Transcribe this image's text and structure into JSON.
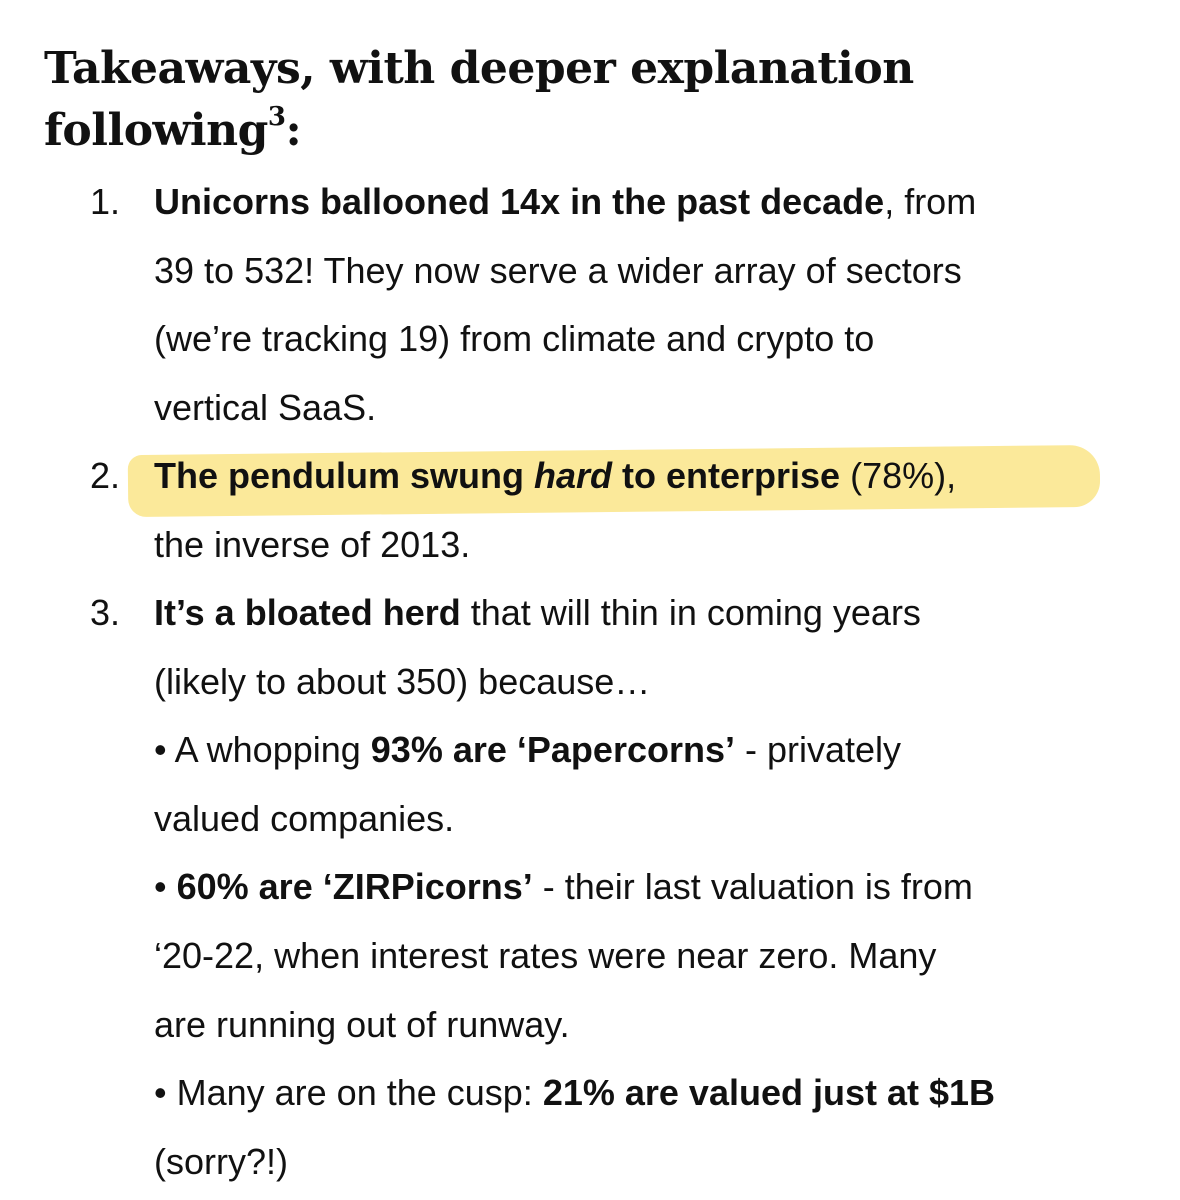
{
  "heading": {
    "text": "Takeaways, with deeper explanation following",
    "footnote": "3",
    "suffix": ":"
  },
  "highlight_color": "#fbe99a",
  "items": [
    {
      "number": "1.",
      "bold": "Unicorns ballooned 14x in the past decade",
      "line1_rest": ", from",
      "line2": "39 to 532! They now serve a wider array of sectors",
      "line3": "(we’re tracking 19) from climate and crypto to",
      "line4": "vertical SaaS."
    },
    {
      "number": "2.",
      "bold_a": "The pendulum swung ",
      "bold_italic": "hard",
      "bold_b": " to enterprise",
      "line1_rest": " (78%),",
      "line2": "the inverse of 2013."
    },
    {
      "number": "3.",
      "bold": "It’s a bloated herd",
      "line1_rest": " that will thin in coming years",
      "line2": "(likely to about 350) because…",
      "bullets": [
        {
          "prefix": "• A whopping ",
          "bold": "93% are ‘Papercorns’",
          "rest": " - privately",
          "cont": [
            "valued companies."
          ]
        },
        {
          "prefix": "• ",
          "bold": "60% are ‘ZIRPicorns’",
          "rest": " - their last valuation is from",
          "cont": [
            "‘20-22, when interest rates were near zero. Many",
            "are running out of runway."
          ]
        },
        {
          "prefix": "• Many are on the cusp: ",
          "bold": "21% are valued just at $1B",
          "rest": "",
          "cont": [
            "(sorry?!)"
          ]
        }
      ]
    }
  ]
}
